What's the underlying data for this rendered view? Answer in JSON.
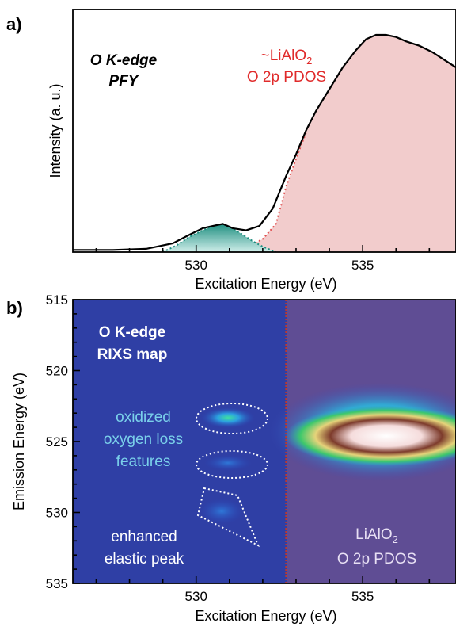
{
  "chart_data": [
    {
      "panel_label": "a)",
      "type": "area",
      "title": "",
      "xlabel": "Excitation Energy (eV)",
      "ylabel": "Intensity (a. u.)",
      "xlim": [
        526.3,
        537.8
      ],
      "ylim": [
        0,
        1.0
      ],
      "x_ticks": [
        530,
        535
      ],
      "y_ticks_shown": false,
      "annotations": {
        "panel_title_line1": "O K-edge",
        "panel_title_line2": "PFY",
        "pdos_line1_main": "~LiAlO",
        "pdos_line1_sub": "2",
        "pdos_line2": "O 2p PDOS"
      },
      "series": [
        {
          "kind": "measured PFY",
          "x": [
            526.3,
            527.5,
            528.5,
            529.3,
            529.8,
            530.2,
            530.5,
            530.8,
            531.1,
            531.5,
            531.9,
            532.3,
            532.7,
            533.0,
            533.3,
            533.6,
            534.0,
            534.4,
            534.8,
            535.1,
            535.4,
            535.7,
            536.0,
            536.3,
            536.7,
            537.1,
            537.5,
            537.8
          ],
          "y": [
            0.01,
            0.01,
            0.015,
            0.04,
            0.08,
            0.11,
            0.12,
            0.13,
            0.11,
            0.1,
            0.12,
            0.2,
            0.35,
            0.45,
            0.56,
            0.65,
            0.75,
            0.85,
            0.93,
            0.98,
            1.0,
            1.0,
            0.99,
            0.97,
            0.95,
            0.92,
            0.88,
            0.85
          ]
        },
        {
          "kind": "oxidized oxygen component",
          "color": "#2a9d8f",
          "x": [
            529.0,
            529.4,
            529.8,
            530.2,
            530.5,
            530.8,
            531.1,
            531.4,
            531.7,
            532.0,
            532.4
          ],
          "y": [
            0.0,
            0.03,
            0.07,
            0.1,
            0.12,
            0.13,
            0.11,
            0.08,
            0.05,
            0.025,
            0.0
          ]
        },
        {
          "kind": "LiAlO2 O 2p PDOS component",
          "color": "#f2cccc",
          "x": [
            531.0,
            531.5,
            532.0,
            532.4,
            532.7,
            533.0,
            533.3,
            533.6,
            534.0,
            534.4,
            534.8,
            535.1,
            535.4,
            535.7,
            536.0,
            536.3,
            536.7,
            537.1,
            537.5,
            537.8
          ],
          "y": [
            0.0,
            0.02,
            0.06,
            0.13,
            0.3,
            0.43,
            0.55,
            0.65,
            0.75,
            0.85,
            0.93,
            0.98,
            1.0,
            1.0,
            0.99,
            0.97,
            0.95,
            0.92,
            0.88,
            0.85
          ]
        }
      ]
    },
    {
      "panel_label": "b)",
      "type": "heatmap",
      "title": "",
      "xlabel": "Excitation Energy (eV)",
      "ylabel": "Emission Energy (eV)",
      "xlim": [
        526.3,
        537.8
      ],
      "ylim": [
        535,
        515
      ],
      "x_ticks": [
        530,
        535
      ],
      "y_ticks": [
        515,
        520,
        525,
        530,
        535
      ],
      "divider_x": 532.7,
      "colormap": [
        "#2c3e9e",
        "#3050c8",
        "#2fb0d8",
        "#27c46a",
        "#e8d46a",
        "#f6e8b0",
        "#8a4a3a",
        "#f7e1e1"
      ],
      "annotations": {
        "map_title_line1": "O K-edge",
        "map_title_line2": "RIXS map",
        "loss_line1": "oxidized",
        "loss_line2": "oxygen loss",
        "loss_line3": "features",
        "elastic_line1": "enhanced",
        "elastic_line2": "elastic peak",
        "pdos_line1_main": "LiAlO",
        "pdos_line1_sub": "2",
        "pdos_line2": "O 2p PDOS"
      },
      "features": [
        {
          "name": "loss feature",
          "x": 530.8,
          "y": 523.3,
          "intensity": 0.7
        },
        {
          "name": "loss feature",
          "x": 530.8,
          "y": 526.5,
          "intensity": 0.3
        },
        {
          "name": "elastic peak",
          "x": 530.6,
          "y": 530.0,
          "intensity": 0.35
        },
        {
          "name": "PDOS main band",
          "x": 536.0,
          "y": 525.0,
          "intensity": 1.0
        }
      ]
    }
  ]
}
